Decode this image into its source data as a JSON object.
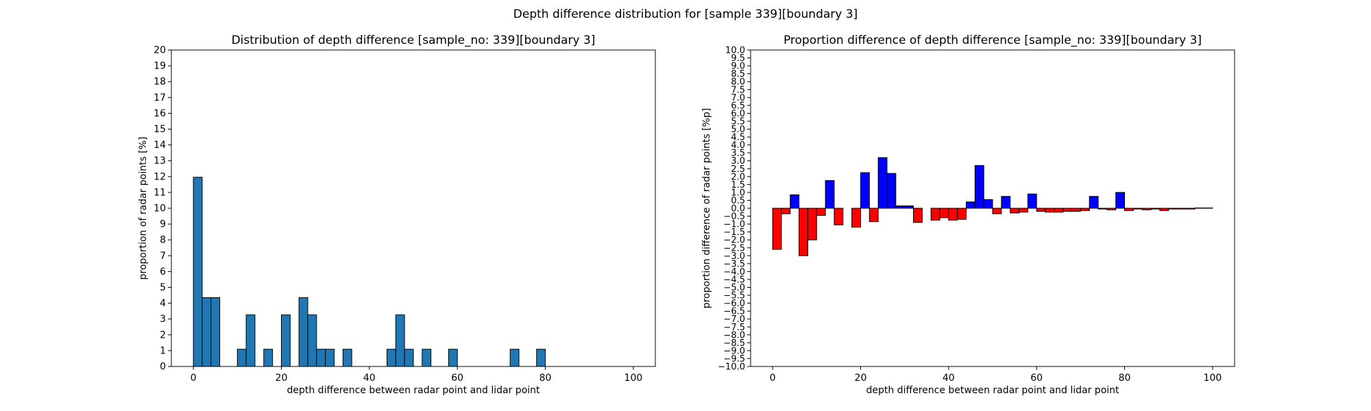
{
  "figure": {
    "suptitle": "Depth difference distribution for [sample 339][boundary 3]"
  },
  "chart_data": [
    {
      "type": "bar",
      "title": "Distribution of depth difference [sample_no: 339][boundary 3]",
      "xlabel": "depth difference between radar point and lidar point",
      "ylabel": "proportion of radar points [%]",
      "xlim": [
        -5,
        105
      ],
      "ylim": [
        0,
        20
      ],
      "xticks": [
        0,
        20,
        40,
        60,
        80,
        100
      ],
      "yticks": [
        0,
        1,
        2,
        3,
        4,
        5,
        6,
        7,
        8,
        9,
        10,
        11,
        12,
        13,
        14,
        15,
        16,
        17,
        18,
        19,
        20
      ],
      "bin_width": 2,
      "bin_starts": [
        0,
        2,
        4,
        6,
        8,
        10,
        12,
        14,
        16,
        18,
        20,
        22,
        24,
        26,
        28,
        30,
        32,
        34,
        36,
        38,
        40,
        42,
        44,
        46,
        48,
        50,
        52,
        54,
        56,
        58,
        60,
        62,
        64,
        66,
        68,
        70,
        72,
        74,
        76,
        78
      ],
      "values": [
        11.96,
        4.35,
        4.35,
        0,
        0,
        1.09,
        3.26,
        0,
        1.09,
        0,
        3.26,
        0,
        4.35,
        3.26,
        1.09,
        1.09,
        0,
        1.09,
        0,
        0,
        0,
        0,
        1.09,
        3.26,
        1.09,
        0,
        1.09,
        0,
        0,
        1.09,
        0,
        0,
        0,
        0,
        0,
        0,
        1.09,
        0,
        0,
        1.09
      ],
      "bar_color": "#1f77b4",
      "edge_color": "#000000"
    },
    {
      "type": "bar",
      "title": "Proportion difference of depth difference [sample_no: 339][boundary 3]",
      "xlabel": "depth difference between radar point and lidar point",
      "ylabel": "proportion difference of radar points [%p]",
      "xlim": [
        -5,
        105
      ],
      "ylim": [
        -10,
        10
      ],
      "xticks": [
        0,
        20,
        40,
        60,
        80,
        100
      ],
      "ytick_step": 0.5,
      "bin_width": 2,
      "bin_starts": [
        0,
        2,
        4,
        6,
        8,
        10,
        12,
        14,
        16,
        18,
        20,
        22,
        24,
        26,
        28,
        30,
        32,
        34,
        36,
        38,
        40,
        42,
        44,
        46,
        48,
        50,
        52,
        54,
        56,
        58,
        60,
        62,
        64,
        66,
        68,
        70,
        72,
        74,
        76,
        78,
        80,
        82,
        84,
        86,
        88,
        90,
        92,
        94,
        96,
        98
      ],
      "values": [
        -2.6,
        -0.35,
        0.85,
        -3.0,
        -2.0,
        -0.45,
        1.75,
        -1.05,
        0,
        -1.2,
        2.25,
        -0.85,
        3.2,
        2.2,
        0.15,
        0.15,
        -0.9,
        0,
        -0.75,
        -0.6,
        -0.75,
        -0.7,
        0.4,
        2.7,
        0.55,
        -0.35,
        0.75,
        -0.3,
        -0.25,
        0.9,
        -0.2,
        -0.25,
        -0.25,
        -0.2,
        -0.2,
        -0.15,
        0.75,
        -0.05,
        -0.1,
        1.0,
        -0.15,
        -0.05,
        -0.1,
        -0.05,
        -0.15,
        -0.05,
        -0.05,
        -0.05,
        0.02,
        0.02
      ],
      "positive_color": "#0000ff",
      "negative_color": "#ff0000",
      "edge_color": "#000000"
    }
  ]
}
